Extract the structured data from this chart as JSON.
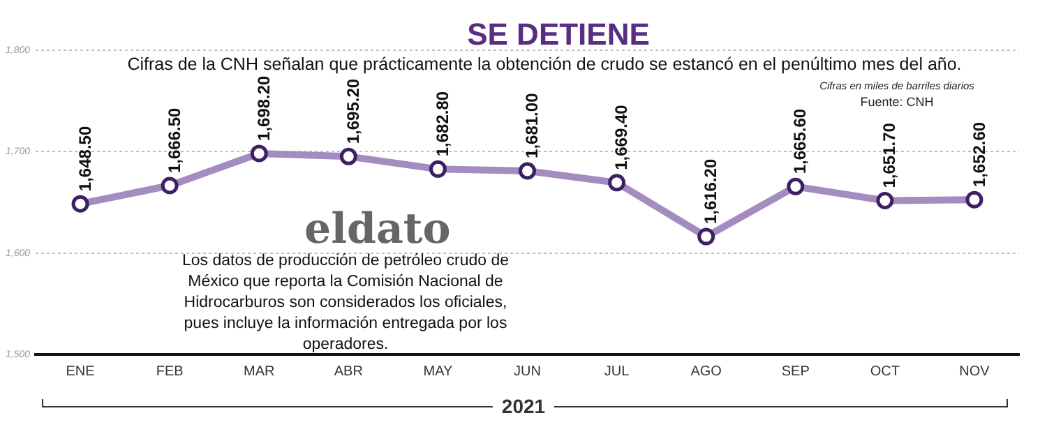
{
  "chart_data": {
    "type": "line",
    "title": "SE DETIENE",
    "subtitle": "Cifras de la CNH señalan que prácticamente la obtención de crudo se estancó en el penúltimo mes del año.",
    "xlabel": "2021",
    "categories": [
      "ENE",
      "FEB",
      "MAR",
      "ABR",
      "MAY",
      "JUN",
      "JUL",
      "AGO",
      "SEP",
      "OCT",
      "NOV"
    ],
    "series": [
      {
        "color": "#a58cc0",
        "values": [
          1648.5,
          1666.5,
          1698.2,
          1695.2,
          1682.8,
          1681.0,
          1669.4,
          1616.2,
          1665.6,
          1651.7,
          1652.6
        ],
        "value_labels": [
          "1,648.50",
          "1,666.50",
          "1,698.20",
          "1,695.20",
          "1,682.80",
          "1,681.00",
          "1,669.40",
          "1,616.20",
          "1,665.60",
          "1,651.70",
          "1,652.60"
        ]
      }
    ],
    "ylim": [
      1500,
      1800
    ],
    "yticks": [
      {
        "value": 1500,
        "label": "1,500"
      },
      {
        "value": 1600,
        "label": "1,600"
      },
      {
        "value": 1700,
        "label": "1,700"
      },
      {
        "value": 1800,
        "label": "1,800"
      }
    ],
    "grid": "y",
    "legend": false,
    "marker": "circle",
    "line_style": "solid",
    "annotations": [
      "Cifras en miles de barriles diarios",
      "Fuente: CNH",
      "eldato",
      "Los datos de producción de petróleo crudo de México que reporta la Comisión Nacional de Hidrocarburos son considerados los oficiales, pues incluye la información entregada por los operadores."
    ]
  }
}
